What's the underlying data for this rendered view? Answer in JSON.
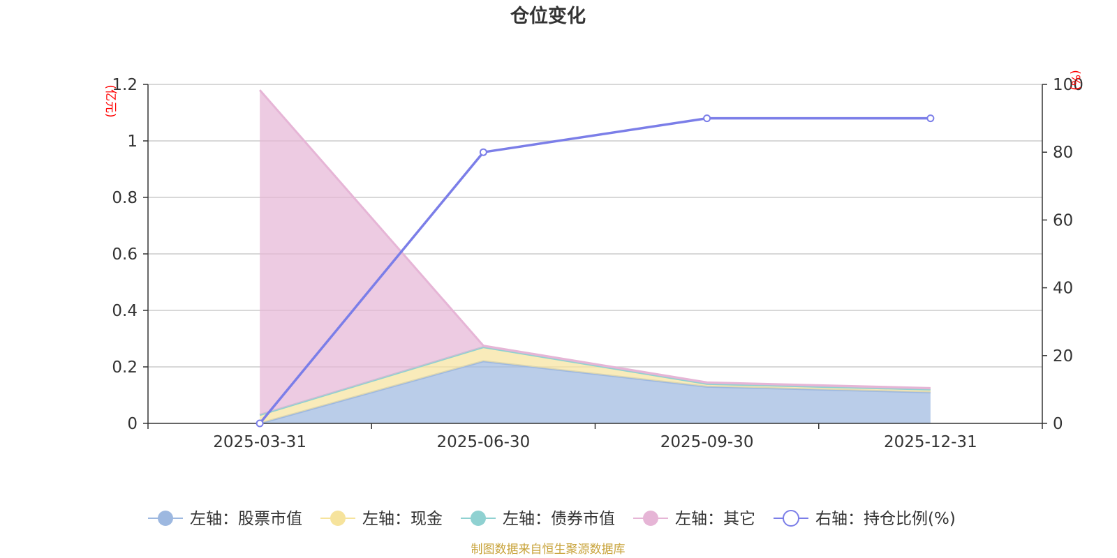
{
  "chart_data": {
    "type": "area",
    "title": "仓位变化",
    "categories": [
      "2025-03-31",
      "2025-06-30",
      "2025-09-30",
      "2025-12-31"
    ],
    "left_axis": {
      "unit_label": "(亿元)",
      "min": 0,
      "max": 1.2,
      "ticks": [
        "0",
        "0.2",
        "0.4",
        "0.6",
        "0.8",
        "1",
        "1.2"
      ],
      "tick_values": [
        0,
        0.2,
        0.4,
        0.6,
        0.8,
        1.0,
        1.2
      ]
    },
    "right_axis": {
      "unit_label": "(%)",
      "min": 0,
      "max": 100,
      "ticks": [
        "0",
        "20",
        "40",
        "60",
        "80",
        "100"
      ],
      "tick_values": [
        0,
        20,
        40,
        60,
        80,
        100
      ]
    },
    "series": [
      {
        "name": "左轴：股票市值",
        "axis": "left",
        "stacked": true,
        "values": [
          0.0,
          0.22,
          0.13,
          0.11
        ],
        "color": "#9db8e0"
      },
      {
        "name": "左轴：现金",
        "axis": "left",
        "stacked": true,
        "values": [
          0.03,
          0.05,
          0.01,
          0.01
        ],
        "color": "#f6e39c"
      },
      {
        "name": "左轴：债券市值",
        "axis": "left",
        "stacked": true,
        "values": [
          0.0,
          0.0,
          0.0,
          0.0
        ],
        "color": "#8fd1d1"
      },
      {
        "name": "左轴：其它",
        "axis": "left",
        "stacked": true,
        "values": [
          1.15,
          0.005,
          0.005,
          0.005
        ],
        "color": "#e6b5d6"
      },
      {
        "name": "右轴：持仓比例(%)",
        "axis": "right",
        "stacked": false,
        "values": [
          0,
          80,
          90,
          90
        ],
        "color": "#7b7ee8"
      }
    ],
    "axis_label_color": "#ff0000",
    "source_note": "制图数据来自恒生聚源数据库",
    "source_color": "#c8a33a"
  }
}
